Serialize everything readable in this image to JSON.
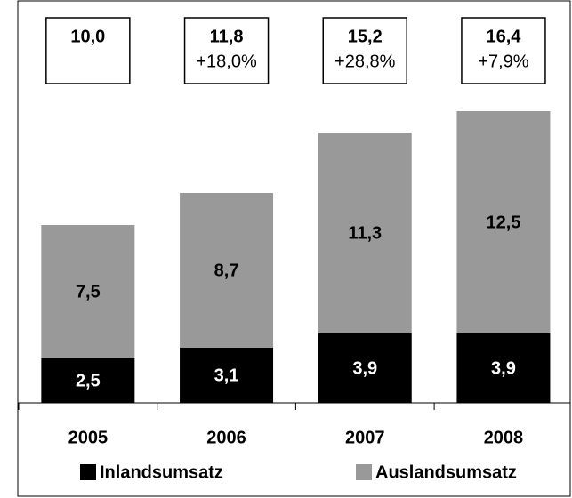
{
  "chart_data": {
    "type": "stacked-bar",
    "categories": [
      "2005",
      "2006",
      "2007",
      "2008"
    ],
    "series": [
      {
        "name": "Inlandsumsatz",
        "color": "#000000",
        "label_color": "#ffffff",
        "values": [
          2.5,
          3.1,
          3.9,
          3.9
        ],
        "value_labels": [
          "2,5",
          "3,1",
          "3,9",
          "3,9"
        ]
      },
      {
        "name": "Auslandsumsatz",
        "color": "#999999",
        "label_color": "#000000",
        "values": [
          7.5,
          8.7,
          11.3,
          12.5
        ],
        "value_labels": [
          "7,5",
          "8,7",
          "11,3",
          "12,5"
        ]
      }
    ],
    "totals": {
      "values": [
        10.0,
        11.8,
        15.2,
        16.4
      ],
      "value_labels": [
        "10,0",
        "11,8",
        "15,2",
        "16,4"
      ]
    },
    "growth": {
      "values": [
        null,
        18.0,
        28.8,
        7.9
      ],
      "value_labels": [
        null,
        "+18,0%",
        "+28,8%",
        "+7,9%"
      ]
    }
  }
}
